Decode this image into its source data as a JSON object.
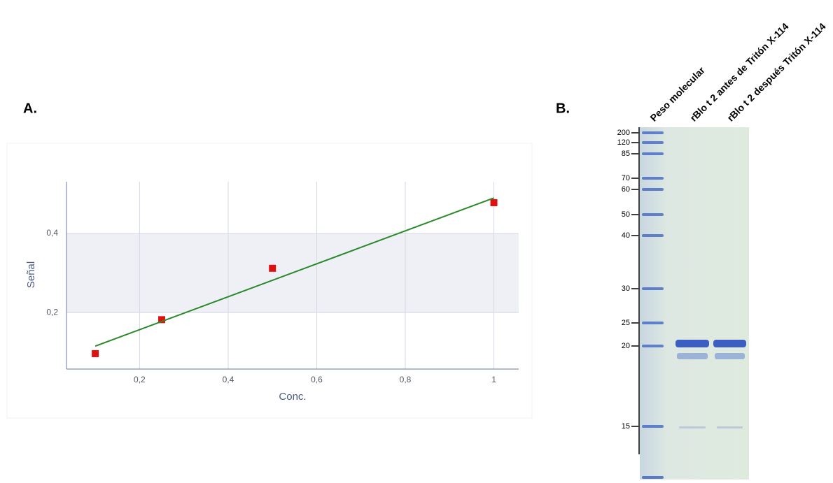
{
  "panel_labels": [
    "A.",
    "B."
  ],
  "chart_data": {
    "type": "scatter",
    "x_label": "Conc.",
    "y_label": "Señal",
    "series": [
      {
        "color": "#e01010",
        "x": [
          0.1,
          0.25,
          0.5,
          1
        ],
        "values": [
          0.096,
          0.182,
          0.312,
          0.478
        ]
      },
      {
        "type": "line",
        "color": "#2a8a2a",
        "x": [
          0.1,
          1
        ],
        "values": [
          0.115,
          0.49
        ]
      }
    ],
    "xlim": [
      0.035,
      1.056
    ],
    "ylim": [
      0.057,
      0.531
    ],
    "xticks": [
      {
        "value": 0.2,
        "label": "0,2"
      },
      {
        "value": 0.4,
        "label": "0,4"
      },
      {
        "value": 0.6,
        "label": "0,6"
      },
      {
        "value": 0.8,
        "label": "0,8"
      },
      {
        "value": 1,
        "label": "1"
      }
    ],
    "yticks": [
      {
        "value": 0.2,
        "label": "0,2"
      },
      {
        "value": 0.4,
        "label": "0,4"
      }
    ],
    "grid": true,
    "band_color": "#eef0f5"
  },
  "gel": {
    "lane_labels": [
      "Peso molecular",
      "rBlo t 2 antes de Tritón X-114",
      "rBlo t 2 después Tritón X-114"
    ],
    "marker_labels": [
      "200",
      "120",
      "85",
      "70",
      "60",
      "50",
      "40",
      "30",
      "25",
      "20",
      "15"
    ]
  }
}
